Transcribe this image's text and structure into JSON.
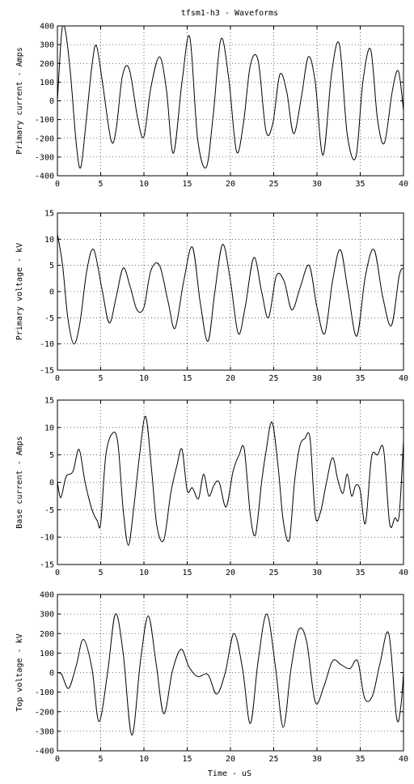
{
  "title": "tfsm1-h3 - Waveforms",
  "xlabel": "Time - uS",
  "chart_data": [
    {
      "type": "line",
      "ylabel": "Primary current - Amps",
      "xlim": [
        0,
        40
      ],
      "ylim": [
        -400,
        400
      ],
      "xticks": [
        0,
        5,
        10,
        15,
        20,
        25,
        30,
        35,
        40
      ],
      "yticks": [
        -400,
        -300,
        -200,
        -100,
        0,
        100,
        200,
        300,
        400
      ],
      "grid": true,
      "series": [
        {
          "x": [
            0,
            0.5,
            0.9,
            1.5,
            2.2,
            2.7,
            3.3,
            4.0,
            4.5,
            5.2,
            6.2,
            6.8,
            7.5,
            8.3,
            9.3,
            10.0,
            10.8,
            11.8,
            12.6,
            13.4,
            14.4,
            15.3,
            16.2,
            17.2,
            18.0,
            18.9,
            19.8,
            20.7,
            21.5,
            22.3,
            23.2,
            24.1,
            24.9,
            25.7,
            26.5,
            27.3,
            28.2,
            29.0,
            29.8,
            30.7,
            31.7,
            32.6,
            33.5,
            34.5,
            35.3,
            36.2,
            37.0,
            37.8,
            38.7,
            39.4,
            40.0
          ],
          "y": [
            0,
            370,
            380,
            150,
            -240,
            -355,
            -120,
            190,
            295,
            100,
            -210,
            -150,
            130,
            170,
            -100,
            -190,
            70,
            235,
            60,
            -280,
            100,
            340,
            -200,
            -355,
            -80,
            330,
            120,
            -270,
            -120,
            190,
            215,
            -160,
            -120,
            140,
            50,
            -175,
            20,
            235,
            100,
            -290,
            150,
            300,
            -180,
            -300,
            100,
            275,
            -100,
            -225,
            50,
            160,
            -50
          ]
        }
      ]
    },
    {
      "type": "line",
      "ylabel": "Primary voltage - kV",
      "xlim": [
        0,
        40
      ],
      "ylim": [
        -15,
        15
      ],
      "xticks": [
        0,
        5,
        10,
        15,
        20,
        25,
        30,
        35,
        40
      ],
      "yticks": [
        -15,
        -10,
        -5,
        0,
        5,
        10,
        15
      ],
      "grid": true,
      "series": [
        {
          "x": [
            0,
            0.6,
            1.2,
            1.9,
            2.6,
            3.4,
            4.2,
            5.2,
            6.0,
            6.8,
            7.6,
            8.4,
            9.2,
            10.0,
            10.8,
            11.8,
            12.8,
            13.6,
            14.6,
            15.6,
            16.5,
            17.4,
            18.2,
            19.1,
            20.0,
            20.9,
            21.7,
            22.7,
            23.6,
            24.4,
            25.3,
            26.2,
            27.1,
            28.1,
            29.1,
            30.0,
            30.9,
            31.8,
            32.7,
            33.6,
            34.6,
            35.6,
            36.6,
            37.6,
            38.6,
            39.5,
            40.0
          ],
          "y": [
            11,
            5,
            -5,
            -10,
            -6,
            4,
            8,
            0,
            -6,
            -1,
            4.5,
            1,
            -3.5,
            -3,
            4,
            5,
            -2,
            -7,
            2,
            8.5,
            -2,
            -9.5,
            0,
            9,
            2,
            -8,
            -3,
            6.5,
            0,
            -5,
            3,
            2,
            -3.5,
            1,
            5,
            -3,
            -8,
            2,
            8,
            0,
            -8.5,
            3,
            8,
            -1,
            -6.5,
            3,
            4.5
          ]
        }
      ]
    },
    {
      "type": "line",
      "ylabel": "Base current - Amps",
      "xlim": [
        0,
        40
      ],
      "ylim": [
        -15,
        15
      ],
      "xticks": [
        0,
        5,
        10,
        15,
        20,
        25,
        30,
        35,
        40
      ],
      "yticks": [
        -15,
        -10,
        -5,
        0,
        5,
        10,
        15
      ],
      "grid": true,
      "series": [
        {
          "x": [
            0,
            0.4,
            1.0,
            1.8,
            2.5,
            3.2,
            4.0,
            4.6,
            5.0,
            5.6,
            6.4,
            7.0,
            7.6,
            8.2,
            8.8,
            9.5,
            10.2,
            10.9,
            11.5,
            12.3,
            13.1,
            13.8,
            14.4,
            15.0,
            15.6,
            16.3,
            16.9,
            17.5,
            18.1,
            18.7,
            19.5,
            20.3,
            21.0,
            21.6,
            22.3,
            22.9,
            23.6,
            24.1,
            24.8,
            25.5,
            26.1,
            26.8,
            27.4,
            28.0,
            28.6,
            29.2,
            29.8,
            30.4,
            31.1,
            31.8,
            32.4,
            33.0,
            33.5,
            34.0,
            34.5,
            35.0,
            35.6,
            36.3,
            37.0,
            37.7,
            38.4,
            39.0,
            39.5,
            40.0
          ],
          "y": [
            0,
            -2.8,
            1,
            2,
            6,
            0,
            -5,
            -7,
            -7.5,
            5,
            9,
            7,
            -5,
            -11.5,
            -5,
            5,
            12,
            2,
            -8,
            -10.5,
            -2,
            3,
            6,
            -1.5,
            -1,
            -3,
            1.5,
            -2.5,
            -0.5,
            0,
            -4.5,
            2,
            5,
            6,
            -6,
            -9.5,
            0,
            5.5,
            11,
            3,
            -7,
            -10.5,
            0,
            6.5,
            8,
            8,
            -6,
            -5.5,
            0,
            4.5,
            0.5,
            -2,
            1.5,
            -2.5,
            -0.5,
            -1.5,
            -7.5,
            4.5,
            5,
            6,
            -7.5,
            -6.5,
            -6,
            7.5
          ]
        }
      ]
    },
    {
      "type": "line",
      "ylabel": "Top voltage - kV",
      "xlim": [
        0,
        40
      ],
      "ylim": [
        -400,
        400
      ],
      "xticks": [
        0,
        5,
        10,
        15,
        20,
        25,
        30,
        35,
        40
      ],
      "yticks": [
        -400,
        -300,
        -200,
        -100,
        0,
        100,
        200,
        300,
        400
      ],
      "grid": true,
      "series": [
        {
          "x": [
            0,
            0.5,
            1.3,
            2.2,
            3.0,
            4.0,
            4.8,
            5.8,
            6.7,
            7.6,
            8.6,
            9.6,
            10.5,
            11.4,
            12.3,
            13.3,
            14.3,
            15.2,
            16.2,
            17.4,
            18.4,
            19.4,
            20.4,
            21.4,
            22.3,
            23.2,
            24.2,
            25.2,
            26.1,
            27.0,
            27.9,
            28.8,
            29.8,
            30.8,
            31.8,
            32.8,
            33.8,
            34.7,
            35.5,
            36.4,
            37.3,
            38.3,
            39.2,
            39.7,
            40.0
          ],
          "y": [
            0,
            -10,
            -80,
            40,
            170,
            20,
            -250,
            0,
            300,
            100,
            -320,
            60,
            290,
            50,
            -210,
            10,
            120,
            30,
            -20,
            -10,
            -110,
            0,
            200,
            20,
            -260,
            60,
            300,
            30,
            -280,
            20,
            220,
            160,
            -150,
            -70,
            60,
            40,
            20,
            60,
            -130,
            -120,
            50,
            200,
            -230,
            -170,
            0
          ]
        }
      ]
    }
  ]
}
